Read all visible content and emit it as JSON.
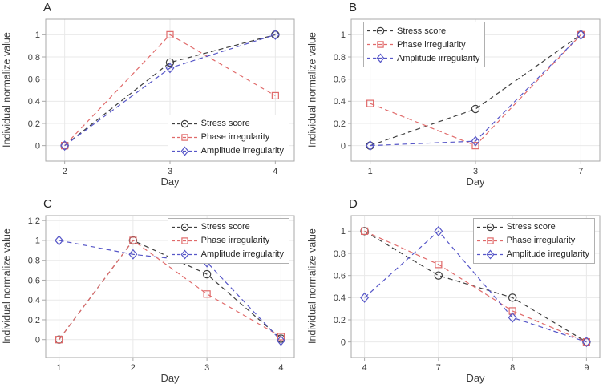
{
  "figure": {
    "background": "#ffffff"
  },
  "style": {
    "axis_color": "#a9a9a9",
    "grid_color": "#e9e9e9",
    "text_color": "#3d3d3d",
    "legend_border": "#b0b0b0",
    "legend_bg": "#ffffff",
    "stress_color": "#3f3f3f",
    "phase_color": "#e06a6a",
    "amplitude_color": "#5757c8"
  },
  "legend_labels": [
    "Stress score",
    "Phase irregularity",
    "Amplitude irregularity"
  ],
  "chart_data": [
    {
      "type": "line",
      "panel": "A",
      "xlabel": "Day",
      "ylabel": "Individual normalize value",
      "categories": [
        "2",
        "3",
        "4"
      ],
      "yticks": [
        0,
        0.2,
        0.4,
        0.6,
        0.8,
        1
      ],
      "ylim": [
        -0.14,
        1.14
      ],
      "grid": true,
      "legend_pos": "lower-right",
      "series": [
        {
          "name": "Stress score",
          "marker": "circle",
          "color": "#3f3f3f",
          "values": [
            0,
            0.75,
            1
          ]
        },
        {
          "name": "Phase irregularity",
          "marker": "square",
          "color": "#e06a6a",
          "values": [
            0,
            1,
            0.45
          ]
        },
        {
          "name": "Amplitude irregularity",
          "marker": "diamond",
          "color": "#5757c8",
          "values": [
            0,
            0.7,
            1
          ]
        }
      ]
    },
    {
      "type": "line",
      "panel": "B",
      "xlabel": "Day",
      "ylabel": "Individual normalize value",
      "categories": [
        "1",
        "3",
        "7"
      ],
      "yticks": [
        0,
        0.2,
        0.4,
        0.6,
        0.8,
        1
      ],
      "ylim": [
        -0.14,
        1.14
      ],
      "grid": true,
      "legend_pos": "upper-left",
      "series": [
        {
          "name": "Stress score",
          "marker": "circle",
          "color": "#3f3f3f",
          "values": [
            0,
            0.33,
            1
          ]
        },
        {
          "name": "Phase irregularity",
          "marker": "square",
          "color": "#e06a6a",
          "values": [
            0.38,
            0,
            1
          ]
        },
        {
          "name": "Amplitude irregularity",
          "marker": "diamond",
          "color": "#5757c8",
          "values": [
            0,
            0.04,
            1
          ]
        }
      ]
    },
    {
      "type": "line",
      "panel": "C",
      "xlabel": "Day",
      "ylabel": "Individual normalize value",
      "categories": [
        "1",
        "2",
        "3",
        "4"
      ],
      "yticks": [
        0,
        0.2,
        0.4,
        0.6,
        0.8,
        1,
        1.2
      ],
      "ylim": [
        -0.18,
        1.25
      ],
      "grid": true,
      "legend_pos": "upper-right",
      "series": [
        {
          "name": "Stress score",
          "marker": "circle",
          "color": "#3f3f3f",
          "values": [
            0,
            1,
            0.66,
            0.01
          ]
        },
        {
          "name": "Phase irregularity",
          "marker": "square",
          "color": "#e06a6a",
          "values": [
            0,
            1,
            0.46,
            0.03
          ]
        },
        {
          "name": "Amplitude irregularity",
          "marker": "diamond",
          "color": "#5757c8",
          "values": [
            1,
            0.86,
            0.78,
            -0.01
          ]
        }
      ]
    },
    {
      "type": "line",
      "panel": "D",
      "xlabel": "Day",
      "ylabel": "Individual normalize value",
      "categories": [
        "4",
        "7",
        "8",
        "9"
      ],
      "yticks": [
        0,
        0.2,
        0.4,
        0.6,
        0.8,
        1
      ],
      "ylim": [
        -0.14,
        1.14
      ],
      "grid": true,
      "legend_pos": "upper-right",
      "series": [
        {
          "name": "Stress score",
          "marker": "circle",
          "color": "#3f3f3f",
          "values": [
            1,
            0.6,
            0.4,
            0
          ]
        },
        {
          "name": "Phase irregularity",
          "marker": "square",
          "color": "#e06a6a",
          "values": [
            1,
            0.7,
            0.28,
            0
          ]
        },
        {
          "name": "Amplitude irregularity",
          "marker": "diamond",
          "color": "#5757c8",
          "values": [
            0.4,
            1,
            0.22,
            0
          ]
        }
      ]
    }
  ]
}
